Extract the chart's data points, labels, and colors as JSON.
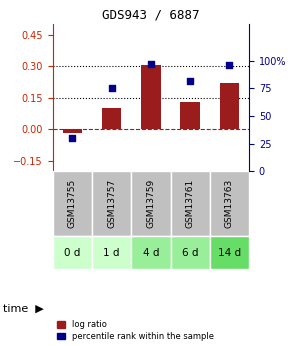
{
  "title": "GDS943 / 6887",
  "samples": [
    "GSM13755",
    "GSM13757",
    "GSM13759",
    "GSM13761",
    "GSM13763"
  ],
  "time_labels": [
    "0 d",
    "1 d",
    "4 d",
    "6 d",
    "14 d"
  ],
  "log_ratio": [
    -0.02,
    0.1,
    0.305,
    0.13,
    0.22
  ],
  "percentile_rank": [
    30,
    75,
    97,
    82,
    96
  ],
  "bar_color": "#9B1C1C",
  "dot_color": "#00008B",
  "ylim_left": [
    -0.2,
    0.5
  ],
  "ylim_right": [
    0,
    133.33
  ],
  "yticks_left": [
    -0.15,
    0.0,
    0.15,
    0.3,
    0.45
  ],
  "yticks_right": [
    0,
    25,
    50,
    75,
    100
  ],
  "hline_y": [
    0.15,
    0.3
  ],
  "zero_line_y": 0.0,
  "sample_bg_color": "#C0C0C0",
  "time_bg_colors": [
    "#CCFFCC",
    "#CCFFCC",
    "#99EE99",
    "#99EE99",
    "#66DD66"
  ],
  "legend_log_ratio": "log ratio",
  "legend_percentile": "percentile rank within the sample",
  "time_label": "time",
  "title_color": "#000000",
  "left_axis_color": "#CC2200",
  "right_axis_color": "#00008B"
}
